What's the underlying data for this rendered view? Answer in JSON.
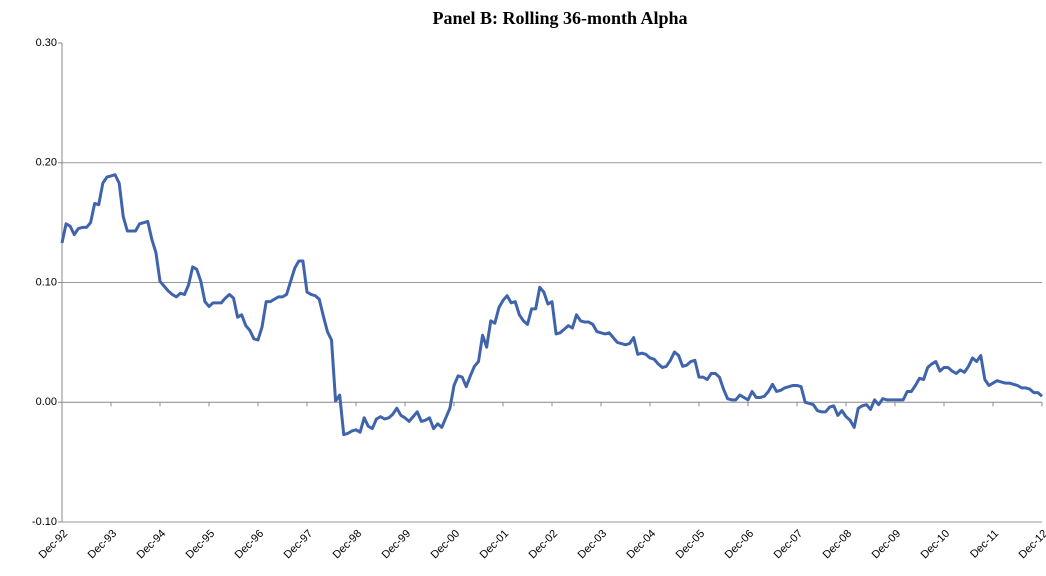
{
  "chart_data": {
    "type": "line",
    "title": "Panel B:  Rolling 36-month Alpha",
    "categories": [
      "Dec-92",
      null,
      null,
      null,
      null,
      null,
      null,
      null,
      null,
      null,
      null,
      null,
      "Dec-93",
      null,
      null,
      null,
      null,
      null,
      null,
      null,
      null,
      null,
      null,
      null,
      "Dec-94",
      null,
      null,
      null,
      null,
      null,
      null,
      null,
      null,
      null,
      null,
      null,
      "Dec-95",
      null,
      null,
      null,
      null,
      null,
      null,
      null,
      null,
      null,
      null,
      null,
      "Dec-96",
      null,
      null,
      null,
      null,
      null,
      null,
      null,
      null,
      null,
      null,
      null,
      "Dec-97",
      null,
      null,
      null,
      null,
      null,
      null,
      null,
      null,
      null,
      null,
      null,
      "Dec-98",
      null,
      null,
      null,
      null,
      null,
      null,
      null,
      null,
      null,
      null,
      null,
      "Dec-99",
      null,
      null,
      null,
      null,
      null,
      null,
      null,
      null,
      null,
      null,
      null,
      "Dec-00",
      null,
      null,
      null,
      null,
      null,
      null,
      null,
      null,
      null,
      null,
      null,
      "Dec-01",
      null,
      null,
      null,
      null,
      null,
      null,
      null,
      null,
      null,
      null,
      null,
      "Dec-02",
      null,
      null,
      null,
      null,
      null,
      null,
      null,
      null,
      null,
      null,
      null,
      "Dec-03",
      null,
      null,
      null,
      null,
      null,
      null,
      null,
      null,
      null,
      null,
      null,
      "Dec-04",
      null,
      null,
      null,
      null,
      null,
      null,
      null,
      null,
      null,
      null,
      null,
      "Dec-05",
      null,
      null,
      null,
      null,
      null,
      null,
      null,
      null,
      null,
      null,
      null,
      "Dec-06",
      null,
      null,
      null,
      null,
      null,
      null,
      null,
      null,
      null,
      null,
      null,
      "Dec-07",
      null,
      null,
      null,
      null,
      null,
      null,
      null,
      null,
      null,
      null,
      null,
      "Dec-08",
      null,
      null,
      null,
      null,
      null,
      null,
      null,
      null,
      null,
      null,
      null,
      "Dec-09",
      null,
      null,
      null,
      null,
      null,
      null,
      null,
      null,
      null,
      null,
      null,
      "Dec-10",
      null,
      null,
      null,
      null,
      null,
      null,
      null,
      null,
      null,
      null,
      null,
      "Dec-11",
      null,
      null,
      null,
      null,
      null,
      null,
      null,
      null,
      null,
      null,
      null,
      "Dec-12"
    ],
    "values": [
      0.133,
      0.149,
      0.147,
      0.14,
      0.145,
      0.146,
      0.146,
      0.15,
      0.166,
      0.165,
      0.183,
      0.188,
      0.189,
      0.19,
      0.183,
      0.155,
      0.143,
      0.143,
      0.143,
      0.149,
      0.15,
      0.151,
      0.136,
      0.125,
      0.101,
      0.097,
      0.093,
      0.09,
      0.088,
      0.091,
      0.09,
      0.098,
      0.113,
      0.111,
      0.101,
      0.084,
      0.08,
      0.083,
      0.083,
      0.083,
      0.087,
      0.09,
      0.087,
      0.071,
      0.073,
      0.064,
      0.06,
      0.053,
      0.052,
      0.063,
      0.084,
      0.084,
      0.086,
      0.088,
      0.088,
      0.09,
      0.101,
      0.112,
      0.118,
      0.118,
      0.092,
      0.09,
      0.089,
      0.086,
      0.072,
      0.059,
      0.052,
      0.001,
      0.006,
      -0.027,
      -0.026,
      -0.024,
      -0.023,
      -0.025,
      -0.013,
      -0.02,
      -0.022,
      -0.014,
      -0.012,
      -0.014,
      -0.013,
      -0.01,
      -0.005,
      -0.011,
      -0.013,
      -0.016,
      -0.012,
      -0.008,
      -0.016,
      -0.015,
      -0.013,
      -0.022,
      -0.018,
      -0.021,
      -0.013,
      -0.005,
      0.014,
      0.022,
      0.021,
      0.013,
      0.022,
      0.03,
      0.034,
      0.056,
      0.046,
      0.068,
      0.066,
      0.079,
      0.085,
      0.089,
      0.083,
      0.084,
      0.073,
      0.068,
      0.065,
      0.078,
      0.078,
      0.096,
      0.092,
      0.082,
      0.084,
      0.057,
      0.058,
      0.061,
      0.064,
      0.062,
      0.073,
      0.068,
      0.067,
      0.067,
      0.065,
      0.059,
      0.058,
      0.057,
      0.058,
      0.054,
      0.05,
      0.049,
      0.048,
      0.049,
      0.054,
      0.04,
      0.041,
      0.04,
      0.037,
      0.036,
      0.032,
      0.029,
      0.03,
      0.035,
      0.042,
      0.039,
      0.03,
      0.031,
      0.034,
      0.035,
      0.021,
      0.021,
      0.019,
      0.024,
      0.024,
      0.021,
      0.011,
      0.003,
      0.002,
      0.002,
      0.006,
      0.004,
      0.002,
      0.009,
      0.004,
      0.004,
      0.005,
      0.009,
      0.015,
      0.009,
      0.01,
      0.012,
      0.013,
      0.014,
      0.014,
      0.013,
      0.0,
      -0.001,
      -0.002,
      -0.007,
      -0.008,
      -0.008,
      -0.004,
      -0.003,
      -0.011,
      -0.007,
      -0.012,
      -0.015,
      -0.021,
      -0.005,
      -0.003,
      -0.002,
      -0.006,
      0.002,
      -0.002,
      0.003,
      0.002,
      0.002,
      0.002,
      0.002,
      0.002,
      0.009,
      0.009,
      0.014,
      0.02,
      0.019,
      0.029,
      0.032,
      0.034,
      0.026,
      0.029,
      0.029,
      0.026,
      0.024,
      0.027,
      0.025,
      0.03,
      0.037,
      0.034,
      0.039,
      0.019,
      0.014,
      0.016,
      0.018,
      0.017,
      0.016,
      0.016,
      0.015,
      0.014,
      0.012,
      0.012,
      0.011,
      0.008,
      0.008,
      0.005
    ],
    "color": "#4064ac",
    "ylim": [
      -0.1,
      0.3
    ],
    "yticks": [
      {
        "value": -0.1,
        "label": "-0.10"
      },
      {
        "value": 0,
        "label": "0.00"
      },
      {
        "value": 0.1,
        "label": "0.10"
      },
      {
        "value": 0.2,
        "label": "0.20"
      },
      {
        "value": 0.3,
        "label": "0.30"
      }
    ],
    "grid": true
  }
}
